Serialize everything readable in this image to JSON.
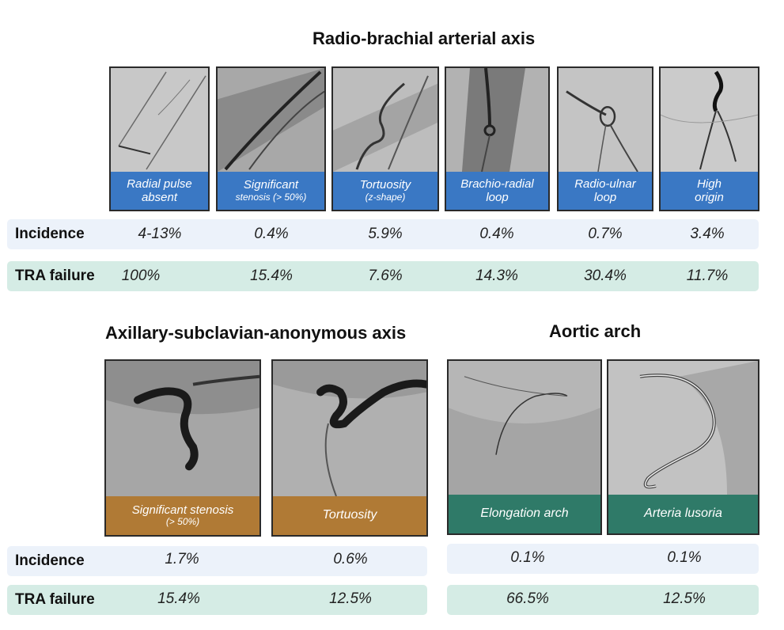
{
  "sections": {
    "radio_brachial": {
      "title": "Radio-brachial arterial axis",
      "cards": [
        {
          "line1": "Radial pulse",
          "line2": "absent"
        },
        {
          "line1": "Significant",
          "line2": "stenosis (> 50%)"
        },
        {
          "line1": "Tortuosity",
          "line2": "(z-shape)"
        },
        {
          "line1": "Brachio-radial",
          "line2": "loop"
        },
        {
          "line1": "Radio-ulnar",
          "line2": "loop"
        },
        {
          "line1": "High",
          "line2": "origin"
        }
      ],
      "incidence": [
        "4-13%",
        "0.4%",
        "5.9%",
        "0.4%",
        "0.7%",
        "3.4%"
      ],
      "tra_failure": [
        "100%",
        "15.4%",
        "7.6%",
        "14.3%",
        "30.4%",
        "11.7%"
      ]
    },
    "axillary": {
      "title": "Axillary-subclavian-anonymous axis",
      "cards": [
        {
          "line1": "Significant stenosis",
          "line2": "(> 50%)"
        },
        {
          "line1": "Tortuosity",
          "line2": ""
        }
      ],
      "incidence": [
        "1.7%",
        "0.6%"
      ],
      "tra_failure": [
        "15.4%",
        "12.5%"
      ]
    },
    "aortic": {
      "title": "Aortic arch",
      "cards": [
        {
          "line1": "Elongation arch",
          "line2": ""
        },
        {
          "line1": "Arteria lusoria",
          "line2": ""
        }
      ],
      "incidence": [
        "0.1%",
        "0.1%"
      ],
      "tra_failure": [
        "66.5%",
        "12.5%"
      ]
    }
  },
  "row_labels": {
    "incidence": "Incidence",
    "tra_failure": "TRA failure"
  },
  "colors": {
    "blue_caption": "#3a78c4",
    "brown_caption": "#b07a35",
    "teal_caption": "#2f7a68",
    "blue_band": "#ecf2fa",
    "green_band": "#d5ece5"
  }
}
